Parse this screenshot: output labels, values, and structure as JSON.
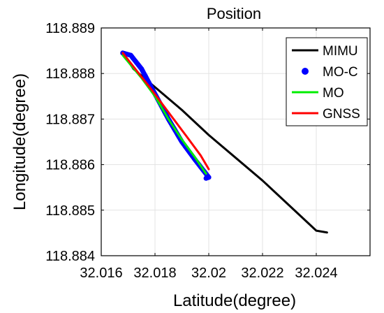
{
  "chart_data": {
    "type": "line",
    "title": "Position",
    "xlabel": "Latitude(degree)",
    "ylabel": "Longitude(degree)",
    "xlim": [
      32.016,
      32.026
    ],
    "ylim": [
      118.884,
      118.889
    ],
    "xticks": [
      32.016,
      32.018,
      32.02,
      32.022,
      32.024
    ],
    "xtick_labels": [
      "32.016",
      "32.018",
      "32.02",
      "32.022",
      "32.024"
    ],
    "yticks": [
      118.884,
      118.885,
      118.886,
      118.887,
      118.888,
      118.889
    ],
    "ytick_labels": [
      "118.884",
      "118.885",
      "118.886",
      "118.887",
      "118.888",
      "118.889"
    ],
    "grid": true,
    "legend_position": "top-right",
    "series": [
      {
        "name": "MIMU",
        "color": "#000000",
        "style": "line",
        "points": [
          [
            32.0168,
            118.88845
          ],
          [
            32.0172,
            118.8881
          ],
          [
            32.018,
            118.8877
          ],
          [
            32.019,
            118.8872
          ],
          [
            32.02,
            118.88665
          ],
          [
            32.021,
            118.88615
          ],
          [
            32.022,
            118.88565
          ],
          [
            32.023,
            118.8851
          ],
          [
            32.024,
            118.88455
          ],
          [
            32.0244,
            118.88451
          ]
        ]
      },
      {
        "name": "MO-C",
        "color": "#0000ff",
        "style": "markers",
        "points": [
          [
            32.0168,
            118.88845
          ],
          [
            32.0171,
            118.8884
          ],
          [
            32.0175,
            118.8881
          ],
          [
            32.018,
            118.88755
          ],
          [
            32.0185,
            118.887
          ],
          [
            32.019,
            118.8865
          ],
          [
            32.0195,
            118.8861
          ],
          [
            32.02,
            118.88572
          ],
          [
            32.0199,
            118.8857
          ]
        ]
      },
      {
        "name": "MO",
        "color": "#00ee00",
        "style": "line",
        "points": [
          [
            32.0168,
            118.8884
          ],
          [
            32.0175,
            118.8879
          ],
          [
            32.018,
            118.8875
          ],
          [
            32.0185,
            118.887
          ],
          [
            32.019,
            118.88655
          ],
          [
            32.0195,
            118.88615
          ],
          [
            32.0199,
            118.8858
          ]
        ]
      },
      {
        "name": "GNSS",
        "color": "#ff0000",
        "style": "line",
        "points": [
          [
            32.0168,
            118.88845
          ],
          [
            32.0172,
            118.88815
          ],
          [
            32.0178,
            118.8877
          ],
          [
            32.0185,
            118.88715
          ],
          [
            32.0192,
            118.8866
          ],
          [
            32.0197,
            118.8862
          ],
          [
            32.02,
            118.8859
          ]
        ]
      }
    ]
  }
}
